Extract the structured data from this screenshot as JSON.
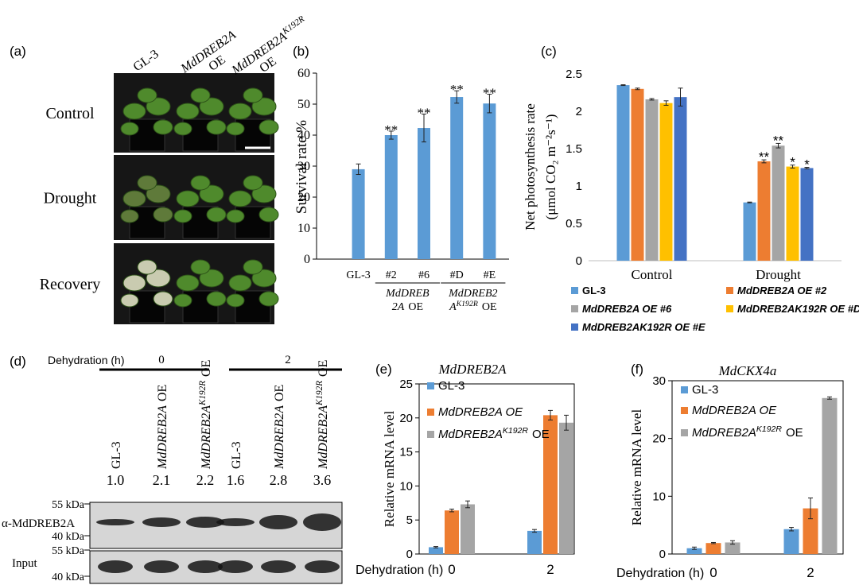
{
  "figure_labels": [
    "(a)",
    "(b)",
    "(c)",
    "(d)",
    "(e)",
    "(f)"
  ],
  "photo_panel": {
    "columns": [
      {
        "name": "GL-3"
      },
      {
        "name": "MdDREB2A",
        "suffix": "OE"
      },
      {
        "name": "MdDREB2A",
        "sup": "K192R",
        "suffix": "OE"
      }
    ],
    "rows": [
      "Control",
      "Drought",
      "Recovery"
    ]
  },
  "blot_panel": {
    "dehydration_label": "Dehydration (h)",
    "timepoints": [
      "0",
      "2"
    ],
    "lanes": [
      {
        "name": "GL-3",
        "ratio": "1.0"
      },
      {
        "name": "MdDREB2A",
        "suffix": "OE",
        "ratio": "2.1"
      },
      {
        "name": "MdDREB2A",
        "sup": "K192R",
        "suffix": "OE",
        "ratio": "2.2"
      },
      {
        "name": "GL-3",
        "ratio": "1.6"
      },
      {
        "name": "MdDREB2A",
        "suffix": "OE",
        "ratio": "2.8"
      },
      {
        "name": "MdDREB2A",
        "sup": "K192R",
        "suffix": "OE",
        "ratio": "3.6"
      }
    ],
    "markers": [
      "55 kDa",
      "40 kDa",
      "55 kDa",
      "40 kDa"
    ],
    "rows": [
      "α-MdDREB2A",
      "Input"
    ]
  },
  "chart_data": [
    {
      "type": "bar",
      "ylabel": "Survival rate %",
      "categories": [
        "GL-3",
        "#2",
        "#6",
        "#D",
        "#E"
      ],
      "values": [
        29,
        40,
        42.3,
        52.3,
        50.2
      ],
      "errors": [
        1.7,
        1.3,
        4.5,
        2,
        3
      ],
      "annotations": [
        null,
        "**",
        "**",
        "**",
        "**"
      ],
      "color": "#5b9bd5",
      "groups": [
        {
          "lines": [
            "MdDREB",
            "2A"
          ],
          "suffix": "OE"
        },
        {
          "lines": [
            "MdDREB2",
            "A"
          ],
          "sup": "K192R",
          "suffix": "OE"
        }
      ],
      "ylim": [
        0,
        60
      ],
      "yticks": [
        0,
        10,
        20,
        30,
        40,
        50,
        60
      ]
    },
    {
      "type": "bar",
      "ylabel": [
        "Net photosynthesis rate",
        "(μmol CO₂ m⁻²s⁻¹)"
      ],
      "categories": [
        "Control",
        "Drought"
      ],
      "series": [
        {
          "name": "GL-3",
          "color": "#5b9bd5",
          "values": [
            2.35,
            0.78
          ],
          "errors": [
            0.005,
            0.005
          ],
          "annotations": [
            null,
            null
          ]
        },
        {
          "name": "MdDREB2A OE #2",
          "color": "#ed7d31",
          "values": [
            2.3,
            1.33
          ],
          "errors": [
            0.01,
            0.02
          ],
          "annotations": [
            null,
            "**"
          ]
        },
        {
          "name": "MdDREB2A OE #6",
          "color": "#a5a5a5",
          "values": [
            2.16,
            1.54
          ],
          "errors": [
            0.01,
            0.03
          ],
          "annotations": [
            null,
            "**"
          ]
        },
        {
          "name": "MdDREB2AK192R OE #D",
          "color": "#ffc000",
          "values": [
            2.11,
            1.26
          ],
          "errors": [
            0.03,
            0.02
          ],
          "annotations": [
            null,
            "*"
          ]
        },
        {
          "name": "MdDREB2AK192R OE #E",
          "color": "#4472c4",
          "values": [
            2.19,
            1.24
          ],
          "errors": [
            0.12,
            0.01
          ],
          "annotations": [
            null,
            "*"
          ]
        }
      ],
      "ylim": [
        0,
        2.5
      ],
      "yticks": [
        0,
        0.5,
        1,
        1.5,
        2,
        2.5
      ]
    },
    {
      "type": "bar",
      "title": "MdDREB2A",
      "xlabel": "Dehydration (h)",
      "ylabel": "Relative mRNA level",
      "categories": [
        "0",
        "2"
      ],
      "series": [
        {
          "name": "GL-3",
          "color": "#5b9bd5",
          "values": [
            1.0,
            3.4
          ],
          "errors": [
            0.1,
            0.2
          ]
        },
        {
          "name": "MdDREB2A OE",
          "color": "#ed7d31",
          "values": [
            6.4,
            20.4
          ],
          "errors": [
            0.2,
            0.7
          ]
        },
        {
          "name": "MdDREB2A",
          "name_sup": "K192R",
          "name_suffix": "OE",
          "color": "#a5a5a5",
          "values": [
            7.3,
            19.3
          ],
          "errors": [
            0.5,
            1.1
          ]
        }
      ],
      "ylim": [
        0,
        25
      ],
      "yticks": [
        0,
        5,
        10,
        15,
        20,
        25
      ]
    },
    {
      "type": "bar",
      "title": "MdCKX4a",
      "xlabel": "Dehydration (h)",
      "ylabel": "Relative mRNA level",
      "categories": [
        "0",
        "2"
      ],
      "series": [
        {
          "name": "GL-3",
          "color": "#5b9bd5",
          "values": [
            1.0,
            4.3
          ],
          "errors": [
            0.2,
            0.3
          ]
        },
        {
          "name": "MdDREB2A OE",
          "color": "#ed7d31",
          "values": [
            1.9,
            7.9
          ],
          "errors": [
            0.1,
            1.8
          ]
        },
        {
          "name": "MdDREB2A",
          "name_sup": "K192R",
          "name_suffix": "OE",
          "color": "#a5a5a5",
          "values": [
            2.0,
            27.0
          ],
          "errors": [
            0.3,
            0.2
          ]
        }
      ],
      "ylim": [
        0,
        30
      ],
      "yticks": [
        0,
        10,
        20,
        30
      ]
    }
  ]
}
